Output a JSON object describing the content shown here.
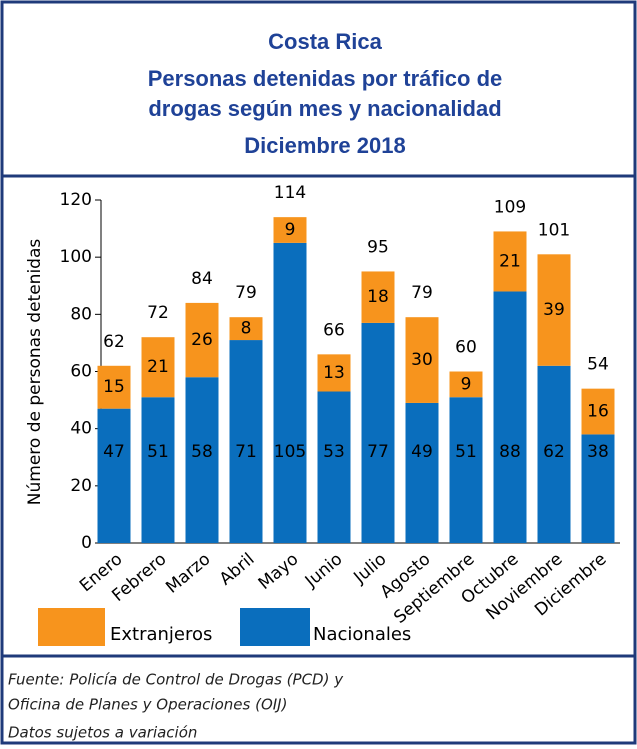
{
  "chart_data": {
    "type": "stacked_bar",
    "title": [
      "Costa Rica",
      "Personas detenidas  por tráfico de",
      "drogas según mes y nacionalidad",
      "Diciembre  2018"
    ],
    "y_label": "Número de personas detenidas",
    "categories": [
      "Enero",
      "Febrero",
      "Marzo",
      "Abril",
      "Mayo",
      "Junio",
      "Julio",
      "Agosto",
      "Septiembre",
      "Octubre",
      "Noviembre",
      "Diciembre"
    ],
    "series": [
      {
        "name": "Nacionales",
        "color": "#0a6ebd",
        "values": [
          47,
          51,
          58,
          71,
          105,
          53,
          77,
          49,
          51,
          88,
          62,
          38
        ]
      },
      {
        "name": "Extranjeros",
        "color": "#f7941d",
        "values": [
          15,
          21,
          26,
          8,
          9,
          13,
          18,
          30,
          9,
          21,
          39,
          16
        ]
      }
    ],
    "totals": [
      62,
      72,
      84,
      79,
      114,
      66,
      95,
      79,
      60,
      109,
      101,
      54
    ],
    "ylim": [
      0,
      120
    ],
    "yticks": [
      0,
      20,
      40,
      60,
      80,
      100,
      120
    ],
    "source": [
      "Fuente: Policía de Control de Drogas (PCD) y",
      "Oficina de Planes y Operaciones (OIJ)",
      "Datos sujetos a variación"
    ]
  }
}
